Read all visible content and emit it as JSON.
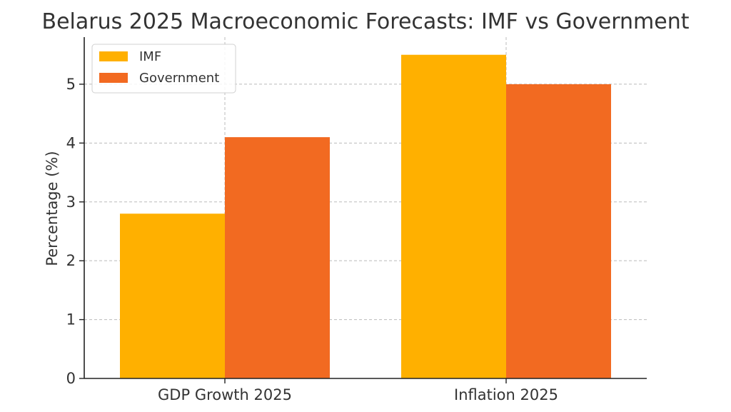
{
  "chart_data": {
    "type": "bar",
    "title": "Belarus 2025 Macroeconomic Forecasts: IMF vs Government",
    "xlabel": "",
    "ylabel": "Percentage (%)",
    "categories": [
      "GDP Growth 2025",
      "Inflation 2025"
    ],
    "series": [
      {
        "name": "IMF",
        "values": [
          2.8,
          5.5
        ],
        "color": "#FFB000"
      },
      {
        "name": "Government",
        "values": [
          4.1,
          5.0
        ],
        "color": "#F26A21"
      }
    ],
    "ylim": [
      0,
      5.8
    ],
    "yticks": [
      0,
      1,
      2,
      3,
      4,
      5
    ],
    "grid": true,
    "legend_position": "top-left"
  }
}
